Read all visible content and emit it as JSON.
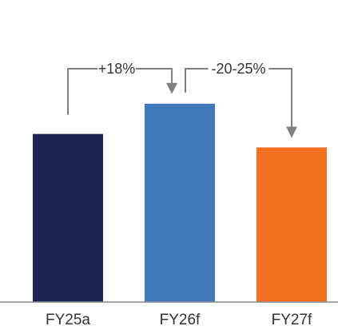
{
  "chart_data": {
    "type": "bar",
    "title": "",
    "xlabel": "",
    "ylabel": "",
    "categories": [
      "FY25a",
      "FY26f",
      "FY27f"
    ],
    "values": [
      100,
      118,
      92
    ],
    "ylim": [
      0,
      145
    ],
    "grid": false,
    "legend": "none",
    "colors": [
      "#1b2650",
      "#4178be",
      "#f36f21"
    ],
    "annotations": [
      {
        "from": 0,
        "to": 1,
        "label": "+18%"
      },
      {
        "from": 1,
        "to": 2,
        "label": "-20-25%"
      }
    ],
    "annotation_color": "#808080",
    "axis_color": "#8c8c8c"
  }
}
